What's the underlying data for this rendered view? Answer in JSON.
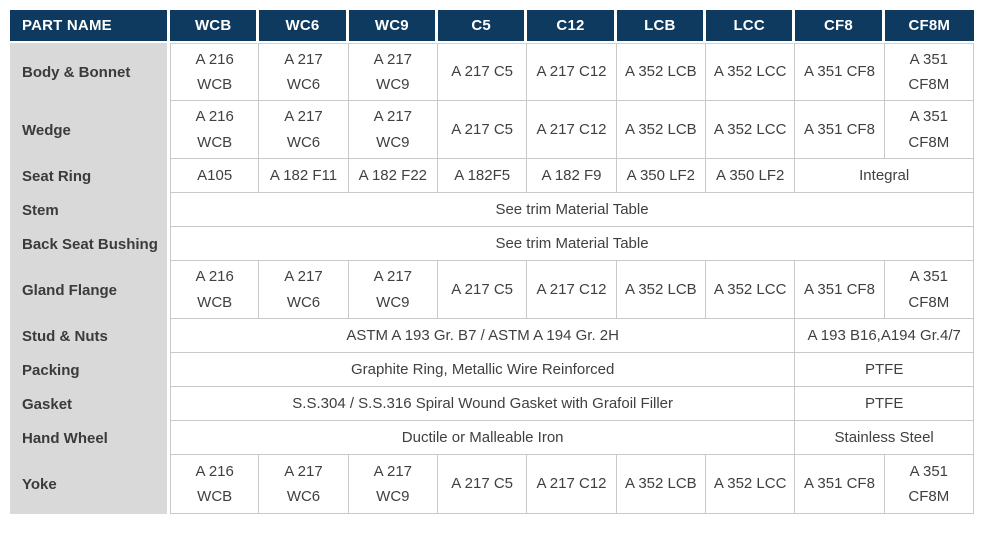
{
  "colors": {
    "header_bg": "#0d3a5e",
    "header_text": "#ffffff",
    "row_label_bg": "#d9d9d9",
    "cell_border": "#c9c9c9",
    "cell_text": "#404040"
  },
  "table": {
    "header": {
      "part_name": "PART NAME",
      "columns": [
        "WCB",
        "WC6",
        "WC9",
        "C5",
        "C12",
        "LCB",
        "LCC",
        "CF8",
        "CF8M"
      ]
    },
    "rows": [
      {
        "label": "Body & Bonnet",
        "cells": [
          "A 216\nWCB",
          "A 217\nWC6",
          "A 217\nWC9",
          "A 217 C5",
          "A 217 C12",
          "A 352 LCB",
          "A 352 LCC",
          "A 351 CF8",
          "A 351\nCF8M"
        ]
      },
      {
        "label": "Wedge",
        "cells": [
          "A 216\nWCB",
          "A 217\nWC6",
          "A 217\nWC9",
          "A 217 C5",
          "A 217 C12",
          "A 352 LCB",
          "A 352 LCC",
          "A 351 CF8",
          "A 351\nCF8M"
        ]
      },
      {
        "label": "Seat Ring",
        "cells": [
          "A105",
          "A 182 F11",
          "A 182 F22",
          "A 182F5",
          "A 182 F9",
          "A 350 LF2",
          "A 350 LF2",
          {
            "text": "Integral",
            "span": 2
          }
        ]
      },
      {
        "label": "Stem",
        "cells": [
          {
            "text": "See trim Material Table",
            "span": 9
          }
        ]
      },
      {
        "label": "Back Seat Bushing",
        "cells": [
          {
            "text": "See trim Material Table",
            "span": 9
          }
        ]
      },
      {
        "label": "Gland Flange",
        "cells": [
          "A 216\nWCB",
          "A 217\nWC6",
          "A 217\nWC9",
          "A 217 C5",
          "A 217 C12",
          "A 352 LCB",
          "A 352 LCC",
          "A 351 CF8",
          "A 351\nCF8M"
        ]
      },
      {
        "label": "Stud & Nuts",
        "cells": [
          {
            "text": "ASTM A 193 Gr. B7 / ASTM A 194 Gr. 2H",
            "span": 7
          },
          {
            "text": "A 193 B16,A194 Gr.4/7",
            "span": 2
          }
        ]
      },
      {
        "label": "Packing",
        "cells": [
          {
            "text": "Graphite Ring, Metallic Wire Reinforced",
            "span": 7
          },
          {
            "text": "PTFE",
            "span": 2
          }
        ]
      },
      {
        "label": "Gasket",
        "cells": [
          {
            "text": "S.S.304 / S.S.316 Spiral Wound Gasket with Grafoil Filler",
            "span": 7
          },
          {
            "text": "PTFE",
            "span": 2
          }
        ]
      },
      {
        "label": "Hand Wheel",
        "cells": [
          {
            "text": "Ductile or Malleable Iron",
            "span": 7
          },
          {
            "text": "Stainless Steel",
            "span": 2
          }
        ]
      },
      {
        "label": "Yoke",
        "cells": [
          "A 216\nWCB",
          "A 217\nWC6",
          "A 217\nWC9",
          "A 217 C5",
          "A 217 C12",
          "A 352 LCB",
          "A 352 LCC",
          "A 351 CF8",
          "A 351\nCF8M"
        ]
      }
    ]
  }
}
